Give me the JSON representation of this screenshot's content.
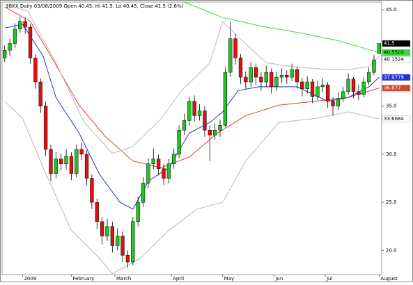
{
  "chart_data": {
    "type": "candlestick",
    "title": "$BKX  Daily 03/08/2009 Open 40.45, Hi 41.5, Lo 40.45, Close 41.5 (2.6%)",
    "up_color": "#22c322",
    "down_color": "#e01010",
    "xlim": [
      -1,
      147
    ],
    "ylim": [
      17.5,
      45.8
    ],
    "xticks": [
      {
        "value": 7,
        "label": "2009"
      },
      {
        "value": 26,
        "label": "February"
      },
      {
        "value": 43,
        "label": "March"
      },
      {
        "value": 65,
        "label": "April"
      },
      {
        "value": 85,
        "label": "May"
      },
      {
        "value": 105,
        "label": "Jun"
      },
      {
        "value": 125,
        "label": "Jul"
      },
      {
        "value": 146,
        "label": "August"
      }
    ],
    "yticks": [
      {
        "value": 20,
        "label": "20.0"
      },
      {
        "value": 25,
        "label": "25.0"
      },
      {
        "value": 30,
        "label": "30.0"
      },
      {
        "value": 35,
        "label": "35.0"
      },
      {
        "value": 45,
        "label": "45.0"
      }
    ],
    "x": [
      0,
      2,
      4,
      6,
      8,
      10,
      12,
      14,
      16,
      18,
      20,
      22,
      24,
      26,
      28,
      30,
      32,
      34,
      36,
      38,
      40,
      42,
      44,
      46,
      48,
      50,
      52,
      54,
      56,
      58,
      60,
      62,
      64,
      66,
      68,
      70,
      72,
      74,
      76,
      78,
      80,
      82,
      84,
      86,
      88,
      90,
      92,
      94,
      96,
      98,
      100,
      102,
      104,
      106,
      108,
      110,
      112,
      114,
      116,
      118,
      120,
      122,
      124,
      126,
      128,
      130,
      132,
      134,
      136,
      138,
      140,
      142,
      144,
      146
    ],
    "open": [
      40.0,
      40.8,
      41.5,
      43.0,
      43.8,
      43.2,
      40.0,
      37.5,
      35.0,
      30.5,
      28.0,
      29.5,
      29.0,
      29.8,
      28.0,
      30.5,
      30.0,
      27.5,
      25.0,
      23.0,
      21.5,
      22.5,
      20.5,
      21.5,
      19.5,
      18.8,
      23.0,
      25.0,
      27.0,
      29.0,
      29.5,
      28.5,
      27.5,
      29.0,
      30.0,
      32.5,
      33.5,
      35.5,
      34.0,
      34.5,
      32.5,
      32.0,
      32.5,
      33.0,
      38.5,
      42.0,
      40.0,
      38.0,
      37.5,
      39.0,
      38.0,
      37.5,
      38.5,
      37.0,
      38.0,
      38.2,
      38.0,
      38.8,
      37.5,
      36.8,
      37.5,
      36.0,
      37.0,
      37.2,
      35.5,
      35.0,
      35.8,
      36.5,
      37.8,
      36.5,
      36.2,
      37.5,
      38.5,
      40.45
    ],
    "high": [
      41.3,
      42.0,
      43.6,
      44.3,
      44.2,
      43.5,
      40.4,
      37.9,
      35.5,
      31.0,
      30.2,
      30.1,
      30.5,
      30.2,
      31.0,
      31.2,
      30.4,
      27.9,
      25.4,
      23.5,
      23.3,
      23.0,
      22.3,
      22.0,
      20.0,
      23.5,
      25.6,
      27.6,
      29.6,
      30.6,
      30.0,
      29.0,
      29.5,
      30.6,
      33.0,
      34.2,
      36.0,
      36.1,
      35.2,
      35.0,
      33.0,
      33.2,
      33.6,
      39.0,
      43.8,
      42.5,
      40.4,
      38.6,
      39.6,
      39.4,
      38.5,
      39.2,
      38.9,
      38.6,
      38.9,
      38.7,
      39.4,
      39.1,
      37.9,
      38.1,
      37.8,
      37.6,
      37.9,
      37.5,
      35.9,
      36.4,
      37.0,
      38.4,
      38.0,
      37.2,
      38.0,
      39.0,
      40.3,
      41.5
    ],
    "low": [
      39.6,
      40.2,
      41.0,
      42.6,
      42.5,
      39.4,
      36.8,
      34.3,
      29.8,
      27.2,
      27.5,
      28.3,
      28.4,
      27.3,
      27.6,
      29.4,
      26.8,
      24.3,
      22.2,
      20.6,
      21.0,
      19.8,
      20.0,
      18.8,
      18.2,
      18.5,
      22.5,
      24.5,
      26.5,
      28.4,
      27.8,
      26.8,
      27.0,
      28.5,
      29.6,
      32.0,
      33.0,
      33.4,
      33.5,
      31.8,
      29.3,
      31.5,
      31.8,
      32.8,
      38.0,
      39.3,
      37.3,
      36.8,
      37.0,
      37.2,
      36.6,
      37.0,
      36.3,
      36.6,
      37.4,
      37.3,
      37.6,
      36.8,
      36.0,
      36.3,
      35.3,
      35.6,
      36.4,
      34.8,
      34.0,
      34.6,
      35.4,
      36.2,
      35.8,
      35.6,
      35.9,
      37.2,
      38.2,
      40.45
    ],
    "close": [
      40.8,
      41.5,
      43.0,
      43.8,
      43.2,
      40.0,
      37.5,
      35.0,
      30.5,
      28.0,
      29.5,
      29.0,
      29.8,
      28.0,
      30.5,
      30.0,
      27.5,
      25.0,
      23.0,
      21.5,
      22.5,
      20.5,
      21.5,
      19.5,
      18.8,
      23.0,
      25.0,
      27.0,
      29.0,
      29.5,
      28.5,
      27.5,
      29.0,
      30.0,
      32.5,
      33.5,
      35.5,
      34.0,
      34.5,
      32.5,
      32.0,
      32.5,
      33.0,
      38.5,
      42.0,
      40.0,
      38.0,
      37.5,
      39.0,
      38.0,
      37.5,
      38.5,
      37.0,
      38.0,
      38.2,
      38.0,
      38.8,
      37.5,
      36.8,
      37.5,
      36.0,
      37.0,
      37.2,
      35.5,
      35.0,
      35.8,
      36.5,
      37.8,
      36.5,
      36.2,
      37.5,
      38.5,
      39.8,
      41.5
    ],
    "lines": [
      {
        "color": "#33dd33",
        "x": [
          70,
          85,
          100,
          115,
          130,
          146
        ],
        "values": [
          45.8,
          44.2,
          43.3,
          42.6,
          41.8,
          40.55
        ]
      },
      {
        "color": "#e04030",
        "x": [
          0,
          10,
          18,
          29,
          39,
          50,
          61,
          72,
          83,
          94,
          107,
          121,
          134,
          146
        ],
        "values": [
          45.3,
          43.8,
          40.2,
          35.1,
          31.9,
          29.3,
          28.6,
          29.7,
          32.2,
          34.0,
          35.1,
          35.5,
          35.9,
          36.88
        ]
      },
      {
        "color": "#2030e0",
        "x": [
          0,
          7,
          15,
          20,
          29,
          37,
          45,
          50,
          56,
          64,
          72,
          80,
          85,
          91,
          99,
          107,
          114,
          126,
          134,
          142,
          146
        ],
        "values": [
          43.1,
          43.5,
          40.2,
          35.9,
          32.2,
          27.9,
          25.0,
          24.3,
          27.2,
          28.6,
          32.2,
          33.3,
          34.4,
          36.6,
          37.0,
          37.0,
          37.0,
          35.5,
          35.9,
          37.0,
          37.98
        ]
      },
      {
        "color": "#b8b8b8",
        "x": [
          0,
          9,
          20,
          31,
          42,
          50,
          61,
          69,
          80,
          85,
          93,
          102,
          112,
          126,
          134,
          142,
          146
        ],
        "values": [
          45.5,
          44.9,
          39.5,
          33.3,
          30.1,
          30.8,
          33.7,
          36.6,
          39.5,
          43.8,
          41.7,
          39.5,
          39.1,
          38.8,
          38.8,
          39.1,
          40.15
        ]
      },
      {
        "color": "#b8b8b8",
        "x": [
          0,
          7,
          15,
          26,
          37,
          42,
          53,
          64,
          75,
          85,
          94,
          107,
          121,
          134,
          146
        ],
        "values": [
          35.5,
          33.7,
          28.6,
          22.1,
          19.2,
          17.6,
          19.2,
          22.1,
          24.3,
          25.0,
          29.3,
          33.3,
          33.7,
          34.4,
          33.67
        ]
      }
    ],
    "price_tags": [
      {
        "value": 41.5,
        "label": "41.5",
        "color": "#000000",
        "text_color": "#ffffff"
      },
      {
        "value": 40.5503,
        "label": "40.5503",
        "color": "#33dd33",
        "text_color": "#000000"
      },
      {
        "value": 40.1524,
        "label": "40.1524",
        "color": "#ffffff",
        "text_color": "#000000"
      },
      {
        "value": 37.9779,
        "label": "37.9779",
        "color": "#2030e0",
        "text_color": "#ffffff"
      },
      {
        "value": 36.877,
        "label": "36.877",
        "color": "#e04030",
        "text_color": "#ffffff"
      },
      {
        "value": 33.6684,
        "label": "33.6684",
        "color": "#ffffff",
        "text_color": "#000000"
      }
    ]
  }
}
